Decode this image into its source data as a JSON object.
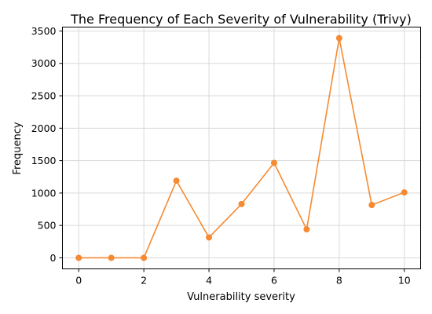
{
  "chart_data": {
    "type": "line",
    "title": "The Frequency of Each Severity of Vulnerability (Trivy)",
    "xlabel": "Vulnerability severity",
    "ylabel": "Frequency",
    "x": [
      0,
      1,
      2,
      3,
      4,
      5,
      6,
      7,
      8,
      9,
      10
    ],
    "series": [
      {
        "values": [
          0,
          0,
          0,
          1190,
          315,
          830,
          1465,
          440,
          3390,
          815,
          1010
        ],
        "color": "#f58a32"
      }
    ],
    "xlim": [
      -0.5,
      10.5
    ],
    "ylim": [
      -170,
      3560
    ],
    "xticks": [
      0,
      2,
      4,
      6,
      8,
      10
    ],
    "yticks": [
      0,
      500,
      1000,
      1500,
      2000,
      2500,
      3000,
      3500
    ],
    "grid": true,
    "legend": "none"
  }
}
